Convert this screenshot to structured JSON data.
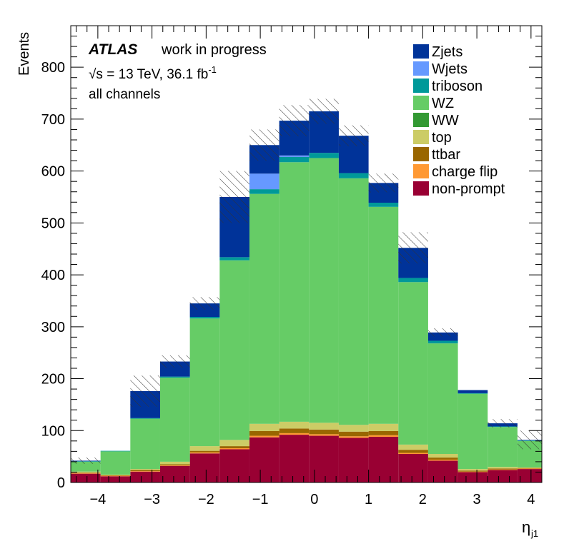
{
  "chart_data": {
    "type": "bar",
    "stacked": true,
    "ylabel": "Events",
    "xlabel_main": "η",
    "xlabel_sub": "j1",
    "xlim": [
      -4.5,
      4.2
    ],
    "ylim": [
      0,
      880
    ],
    "xticks": [
      -4,
      -3,
      -2,
      -1,
      0,
      1,
      2,
      3,
      4
    ],
    "xtick_labels": [
      "−4",
      "−3",
      "−2",
      "−1",
      "0",
      "1",
      "2",
      "3",
      "4"
    ],
    "yticks": [
      0,
      100,
      200,
      300,
      400,
      500,
      600,
      700,
      800
    ],
    "ytick_labels": [
      "0",
      "100",
      "200",
      "300",
      "400",
      "500",
      "600",
      "700",
      "800"
    ],
    "bin_edges": [
      -4.5,
      -3.95,
      -3.4,
      -2.85,
      -2.3,
      -1.75,
      -1.2,
      -0.65,
      -0.1,
      0.45,
      1.0,
      1.55,
      2.1,
      2.65,
      3.2,
      3.75,
      4.2
    ],
    "annotations": {
      "atlas": "ATLAS",
      "status": "work in progress",
      "energy": "√s = 13 TeV, 36.1 fb",
      "lumi_exp": "-1",
      "channel": "all channels"
    },
    "series": [
      {
        "name": "non-prompt",
        "color": "#990033",
        "values": [
          17,
          12,
          21,
          32,
          56,
          64,
          87,
          92,
          90,
          86,
          88,
          55,
          42,
          20,
          24,
          26
        ]
      },
      {
        "name": "charge flip",
        "color": "#ff9933",
        "values": [
          1,
          1,
          1,
          1,
          2,
          2,
          3,
          3,
          3,
          3,
          3,
          2,
          2,
          1,
          1,
          1
        ]
      },
      {
        "name": "ttbar",
        "color": "#996600",
        "values": [
          1,
          1,
          2,
          2,
          3,
          4,
          9,
          9,
          9,
          9,
          8,
          6,
          4,
          2,
          2,
          1
        ]
      },
      {
        "name": "top",
        "color": "#cccc66",
        "values": [
          2,
          1,
          2,
          5,
          9,
          12,
          14,
          13,
          13,
          13,
          14,
          10,
          7,
          3,
          3,
          1
        ]
      },
      {
        "name": "WW",
        "color": "#339933",
        "values": [
          0,
          0,
          0,
          0,
          0,
          0,
          0,
          0,
          0,
          0,
          0,
          0,
          0,
          0,
          0,
          0
        ]
      },
      {
        "name": "WZ",
        "color": "#66cc66",
        "values": [
          19,
          45,
          97,
          162,
          246,
          346,
          443,
          500,
          510,
          475,
          418,
          313,
          213,
          145,
          77,
          51
        ]
      },
      {
        "name": "triboson",
        "color": "#009999",
        "values": [
          1,
          1,
          1,
          2,
          3,
          6,
          9,
          10,
          10,
          10,
          8,
          8,
          5,
          1,
          1,
          1
        ]
      },
      {
        "name": "Wjets",
        "color": "#6699ff",
        "values": [
          0,
          0,
          0,
          0,
          0,
          0,
          30,
          3,
          0,
          0,
          0,
          0,
          0,
          0,
          0,
          0
        ]
      },
      {
        "name": "Zjets",
        "color": "#003399",
        "values": [
          1,
          0,
          52,
          29,
          26,
          116,
          55,
          67,
          80,
          72,
          38,
          58,
          16,
          6,
          6,
          1
        ]
      }
    ],
    "uncertainty": [
      6,
      0,
      30,
      12,
      12,
      50,
      30,
      30,
      24,
      20,
      18,
      30,
      8,
      0,
      8,
      18
    ],
    "legend_position": "top-right",
    "grid": false
  }
}
